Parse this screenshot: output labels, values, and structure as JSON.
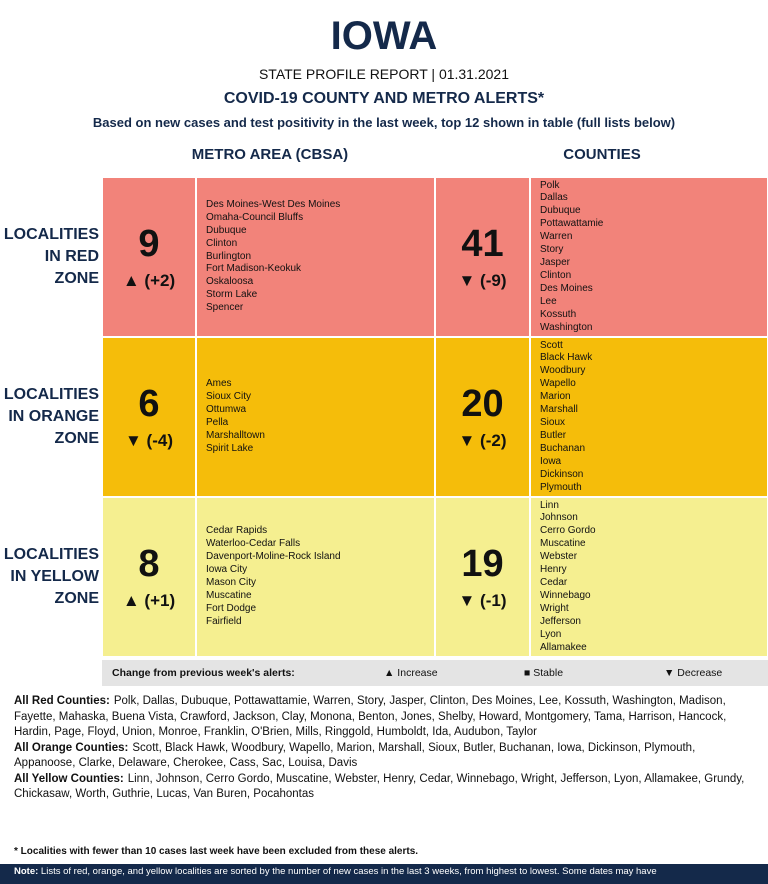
{
  "header": {
    "title": "IOWA",
    "subtitle": "STATE PROFILE REPORT | 01.31.2021",
    "heading": "COVID-19 COUNTY AND METRO ALERTS*",
    "description": "Based on new cases and test positivity in the last week, top 12 shown in table (full lists below)"
  },
  "columns": [
    "METRO AREA (CBSA)",
    "COUNTIES"
  ],
  "rows": [
    {
      "label": [
        "LOCALITIES",
        "IN RED",
        "ZONE"
      ],
      "color": "#f2837a",
      "metro": {
        "count": 9,
        "change": "▲ (+2)",
        "localities": [
          "Des Moines-West Des Moines",
          "Omaha-Council Bluffs",
          "Dubuque",
          "Clinton",
          "Burlington",
          "Fort Madison-Keokuk",
          "Oskaloosa",
          "Storm Lake",
          "Spencer"
        ]
      },
      "counties": {
        "count": 41,
        "change": "▼ (-9)",
        "localities": [
          "Polk",
          "Dallas",
          "Dubuque",
          "Pottawattamie",
          "Warren",
          "Story",
          "Jasper",
          "Clinton",
          "Des Moines",
          "Lee",
          "Kossuth",
          "Washington"
        ]
      }
    },
    {
      "label": [
        "LOCALITIES",
        "IN ORANGE",
        "ZONE"
      ],
      "color": "#f5bd0a",
      "metro": {
        "count": 6,
        "change": "▼ (-4)",
        "localities": [
          "Ames",
          "Sioux City",
          "Ottumwa",
          "Pella",
          "Marshalltown",
          "Spirit Lake"
        ]
      },
      "counties": {
        "count": 20,
        "change": "▼ (-2)",
        "localities": [
          "Scott",
          "Black Hawk",
          "Woodbury",
          "Wapello",
          "Marion",
          "Marshall",
          "Sioux",
          "Butler",
          "Buchanan",
          "Iowa",
          "Dickinson",
          "Plymouth"
        ]
      }
    },
    {
      "label": [
        "LOCALITIES",
        "IN YELLOW",
        "ZONE"
      ],
      "color": "#f5ef90",
      "metro": {
        "count": 8,
        "change": "▲ (+1)",
        "localities": [
          "Cedar Rapids",
          "Waterloo-Cedar Falls",
          "Davenport-Moline-Rock Island",
          "Iowa City",
          "Mason City",
          "Muscatine",
          "Fort Dodge",
          "Fairfield"
        ]
      },
      "counties": {
        "count": 19,
        "change": "▼ (-1)",
        "localities": [
          "Linn",
          "Johnson",
          "Cerro Gordo",
          "Muscatine",
          "Webster",
          "Henry",
          "Cedar",
          "Winnebago",
          "Wright",
          "Jefferson",
          "Lyon",
          "Allamakee"
        ]
      }
    }
  ],
  "legend": {
    "title": "Change from previous week's alerts:",
    "items": [
      "▲ Increase",
      "■ Stable",
      "▼ Decrease"
    ]
  },
  "lists": [
    {
      "label": "All Red Counties:",
      "text": "Polk, Dallas, Dubuque, Pottawattamie, Warren, Story, Jasper, Clinton, Des Moines, Lee, Kossuth, Washington, Madison, Fayette, Mahaska, Buena Vista, Crawford, Jackson, Clay, Monona, Benton, Jones, Shelby, Howard, Montgomery, Tama, Harrison, Hancock, Hardin, Page, Floyd, Union, Monroe, Franklin, O'Brien, Mills, Ringgold, Humboldt, Ida, Audubon, Taylor"
    },
    {
      "label": "All Orange Counties:",
      "text": "Scott, Black Hawk, Woodbury, Wapello, Marion, Marshall, Sioux, Butler, Buchanan, Iowa, Dickinson, Plymouth, Appanoose, Clarke, Delaware, Cherokee, Cass, Sac, Louisa, Davis"
    },
    {
      "label": "All Yellow Counties:",
      "text": "Linn, Johnson, Cerro Gordo, Muscatine, Webster, Henry, Cedar, Winnebago, Wright, Jefferson, Lyon, Allamakee, Grundy, Chickasaw, Worth, Guthrie, Lucas, Van Buren, Pocahontas"
    }
  ],
  "footnote": "* Localities with fewer than 10 cases last week have been excluded from these alerts.",
  "note": {
    "label": "Note:",
    "text": "Lists of red, orange, and yellow localities are sorted by the number of new cases in the last 3 weeks, from highest to lowest. Some dates may have"
  }
}
